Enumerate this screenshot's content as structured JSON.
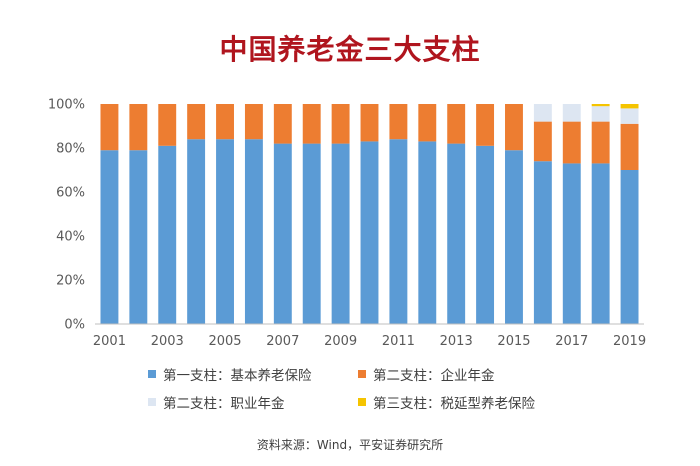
{
  "title": "中国养老金三大支柱",
  "source": "资料来源：Wind，平安证券研究所",
  "chart_data": {
    "type": "bar",
    "stacked": true,
    "categories": [
      "2001",
      "2002",
      "2003",
      "2004",
      "2005",
      "2006",
      "2007",
      "2008",
      "2009",
      "2010",
      "2011",
      "2012",
      "2013",
      "2014",
      "2015",
      "2016",
      "2017",
      "2018",
      "2019"
    ],
    "x_tick_labels": [
      "2001",
      "2003",
      "2005",
      "2007",
      "2009",
      "2011",
      "2013",
      "2015",
      "2017",
      "2019"
    ],
    "y_tick_labels": [
      "0%",
      "20%",
      "40%",
      "60%",
      "80%",
      "100%"
    ],
    "ylim": [
      0,
      100
    ],
    "grid": false,
    "legend_position": "bottom",
    "series": [
      {
        "name": "第一支柱：基本养老保险",
        "color": "#5b9bd5",
        "values": [
          79,
          79,
          81,
          84,
          84,
          84,
          82,
          82,
          82,
          83,
          84,
          83,
          82,
          81,
          79,
          74,
          73,
          73,
          70
        ]
      },
      {
        "name": "第二支柱：企业年金",
        "color": "#ed7d31",
        "values": [
          21,
          21,
          19,
          16,
          16,
          16,
          18,
          18,
          18,
          17,
          16,
          17,
          18,
          19,
          21,
          18,
          19,
          19,
          21
        ]
      },
      {
        "name": "第二支柱：职业年金",
        "color": "#dde6f2",
        "values": [
          0,
          0,
          0,
          0,
          0,
          0,
          0,
          0,
          0,
          0,
          0,
          0,
          0,
          0,
          0,
          8,
          8,
          7,
          7
        ]
      },
      {
        "name": "第三支柱：税延型养老保险",
        "color": "#f5c400",
        "values": [
          0,
          0,
          0,
          0,
          0,
          0,
          0,
          0,
          0,
          0,
          0,
          0,
          0,
          0,
          0,
          0,
          0,
          1,
          2
        ]
      }
    ]
  }
}
